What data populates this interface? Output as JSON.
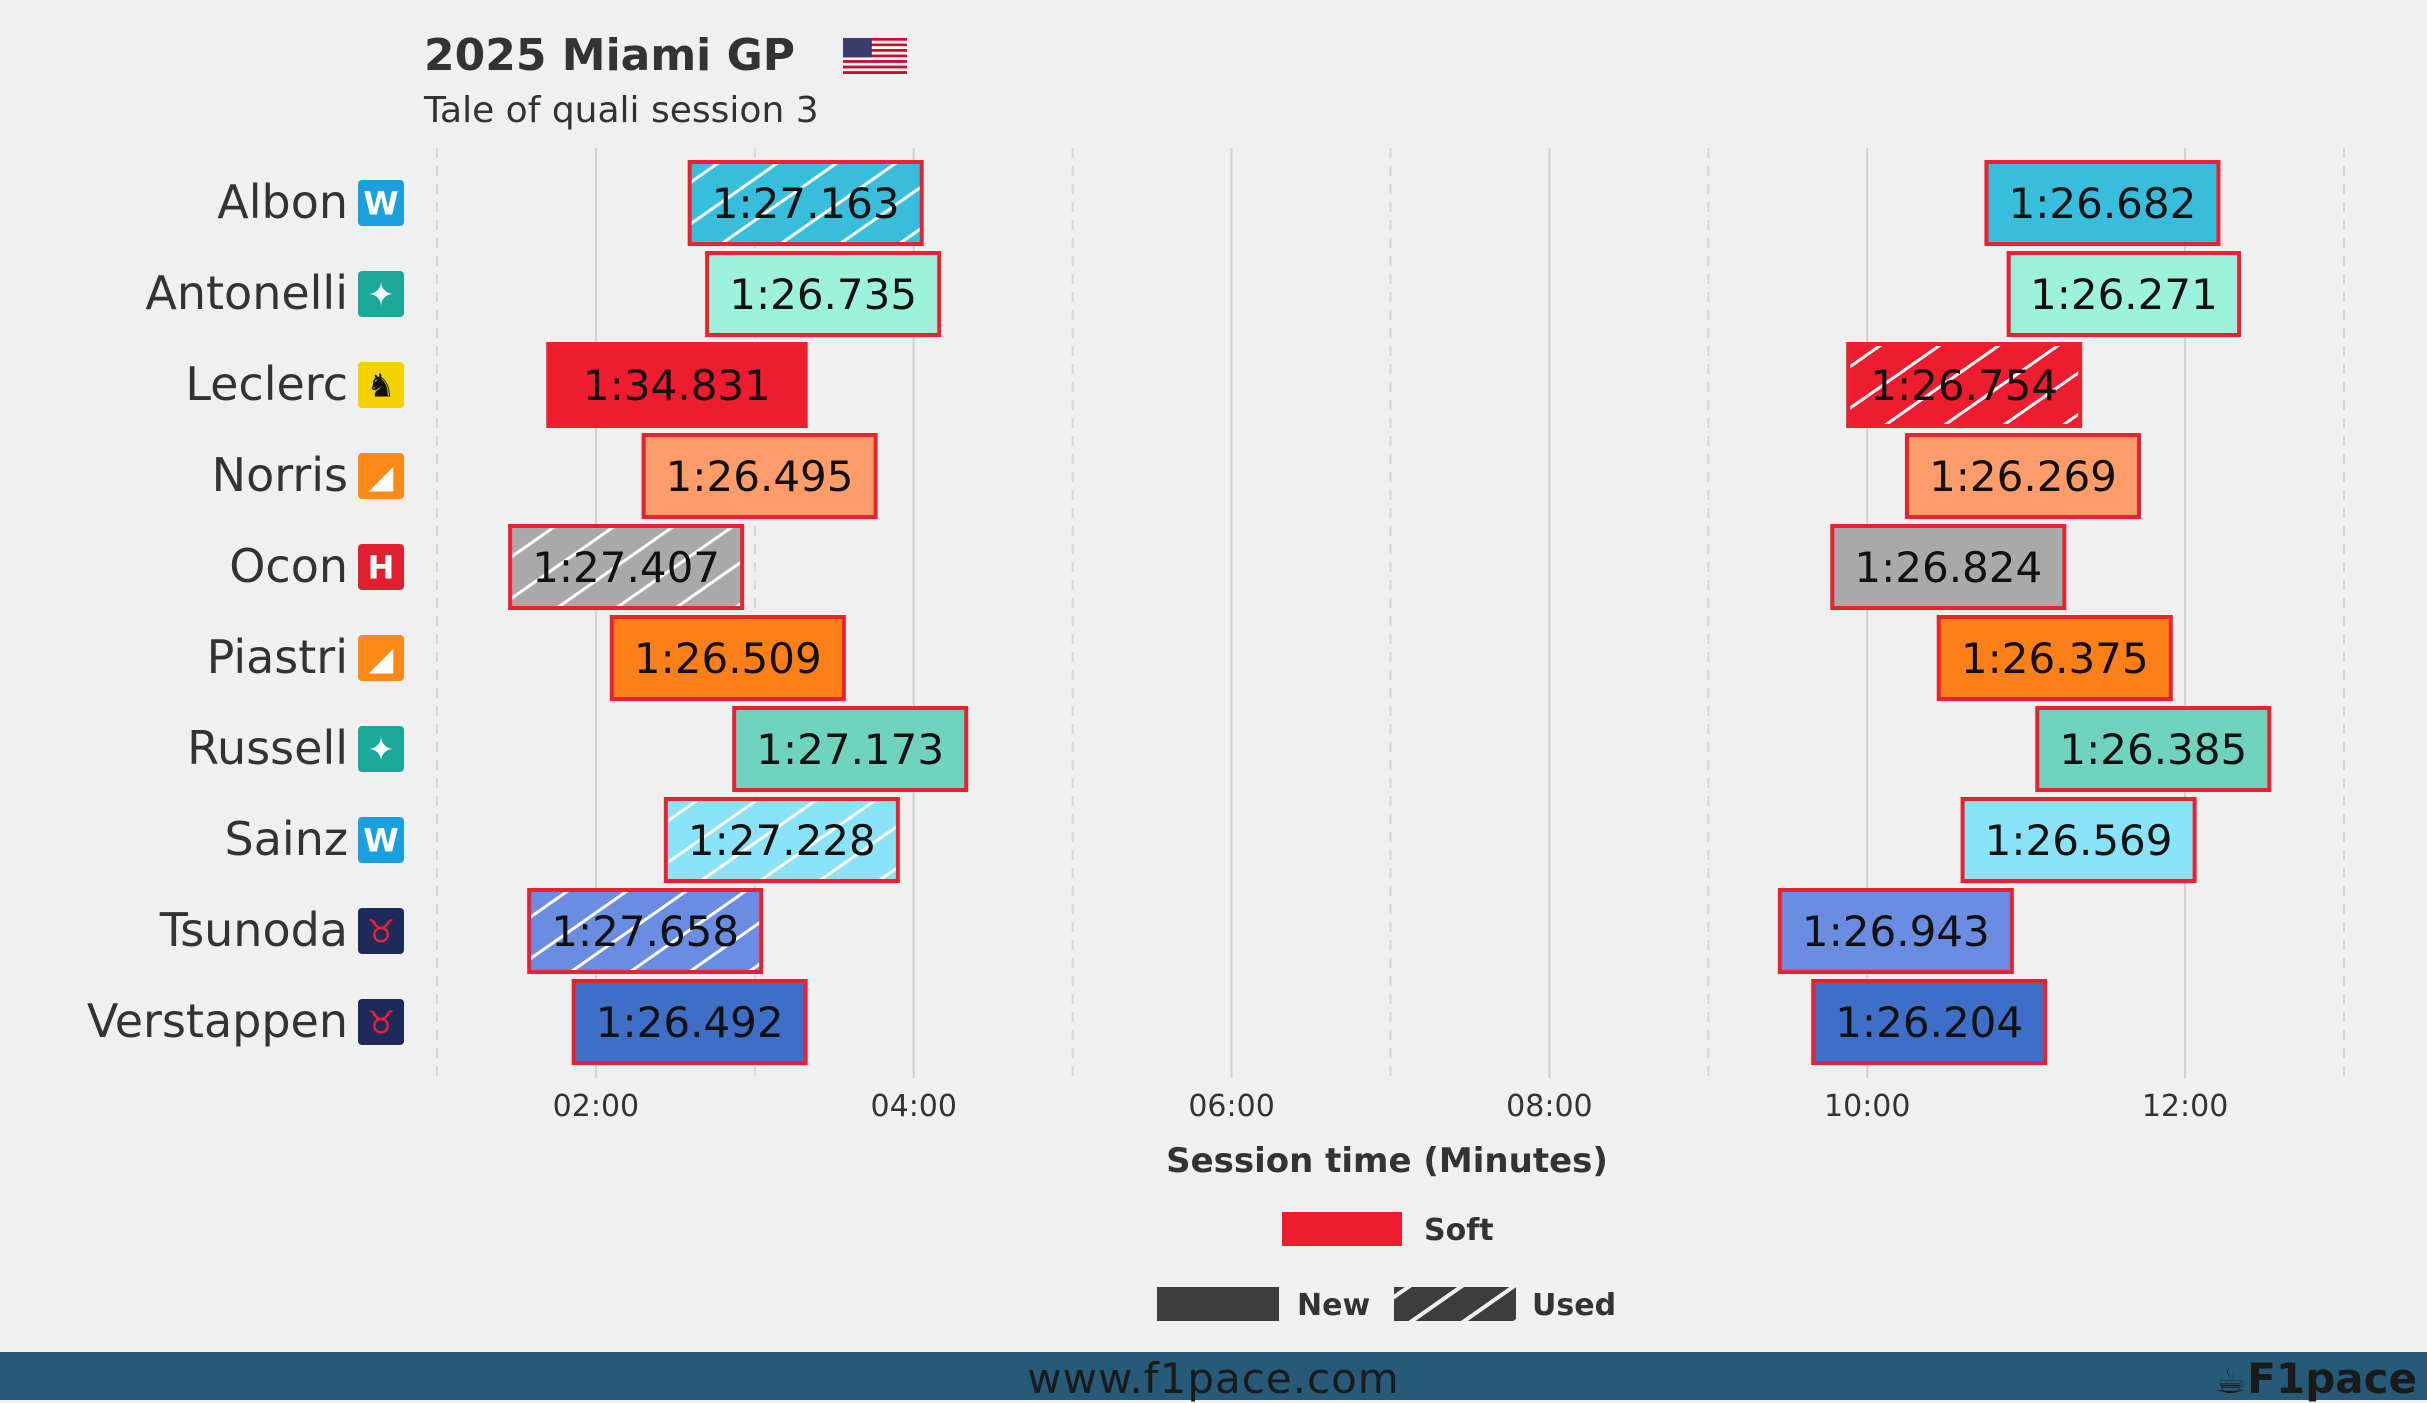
{
  "chart_data": {
    "type": "bar",
    "title": "2025 Miami GP",
    "title_flag_icon": "us-flag-icon",
    "subtitle": "Tale of quali session 3",
    "xlabel": "Session time (Minutes)",
    "xlim": [
      1.0,
      13.0
    ],
    "xticks": [
      {
        "value": 2,
        "label": "02:00"
      },
      {
        "value": 4,
        "label": "04:00"
      },
      {
        "value": 6,
        "label": "06:00"
      },
      {
        "value": 8,
        "label": "08:00"
      },
      {
        "value": 10,
        "label": "10:00"
      },
      {
        "value": 12,
        "label": "12:00"
      }
    ],
    "minor_gridlines": [
      1,
      3,
      5,
      7,
      9,
      13
    ],
    "legend": {
      "compound": [
        {
          "label": "Soft",
          "color": "#ee1c2e"
        }
      ],
      "tyre_age": [
        {
          "label": "New",
          "style": "solid"
        },
        {
          "label": "Used",
          "style": "hatched"
        }
      ]
    },
    "drivers": [
      {
        "name": "Albon",
        "team_icon": "williams-logo-icon",
        "color": "#37bedd",
        "laps": [
          {
            "start": 2.59,
            "end": 4.05,
            "time": "1:27.163",
            "compound": "Soft",
            "used": true
          },
          {
            "start": 10.75,
            "end": 12.21,
            "time": "1:26.682",
            "compound": "Soft",
            "used": false
          }
        ]
      },
      {
        "name": "Antonelli",
        "team_icon": "mercedes-logo-icon",
        "color": "#9df2db",
        "laps": [
          {
            "start": 2.7,
            "end": 4.16,
            "time": "1:26.735",
            "compound": "Soft",
            "used": false
          },
          {
            "start": 10.89,
            "end": 12.34,
            "time": "1:26.271",
            "compound": "Soft",
            "used": false
          }
        ]
      },
      {
        "name": "Leclerc",
        "team_icon": "ferrari-logo-icon",
        "color": "#ee1c2e",
        "laps": [
          {
            "start": 1.7,
            "end": 3.32,
            "time": "1:34.831",
            "compound": "Soft",
            "used": false
          },
          {
            "start": 9.88,
            "end": 11.34,
            "time": "1:26.754",
            "compound": "Soft",
            "used": true
          }
        ]
      },
      {
        "name": "Norris",
        "team_icon": "mclaren-logo-icon",
        "color": "#ff9d6a",
        "laps": [
          {
            "start": 2.3,
            "end": 3.76,
            "time": "1:26.495",
            "compound": "Soft",
            "used": false
          },
          {
            "start": 10.25,
            "end": 11.71,
            "time": "1:26.269",
            "compound": "Soft",
            "used": false
          }
        ]
      },
      {
        "name": "Ocon",
        "team_icon": "haas-logo-icon",
        "color": "#a9a9a9",
        "laps": [
          {
            "start": 1.46,
            "end": 2.92,
            "time": "1:27.407",
            "compound": "Soft",
            "used": true
          },
          {
            "start": 9.78,
            "end": 11.24,
            "time": "1:26.824",
            "compound": "Soft",
            "used": false
          }
        ]
      },
      {
        "name": "Piastri",
        "team_icon": "mclaren-logo-icon",
        "color": "#ff8018",
        "laps": [
          {
            "start": 2.1,
            "end": 3.56,
            "time": "1:26.509",
            "compound": "Soft",
            "used": false
          },
          {
            "start": 10.45,
            "end": 11.91,
            "time": "1:26.375",
            "compound": "Soft",
            "used": false
          }
        ]
      },
      {
        "name": "Russell",
        "team_icon": "mercedes-logo-icon",
        "color": "#6fd3be",
        "laps": [
          {
            "start": 2.87,
            "end": 4.33,
            "time": "1:27.173",
            "compound": "Soft",
            "used": false
          },
          {
            "start": 11.07,
            "end": 12.53,
            "time": "1:26.385",
            "compound": "Soft",
            "used": false
          }
        ]
      },
      {
        "name": "Sainz",
        "team_icon": "williams-logo-icon",
        "color": "#8ae3f8",
        "laps": [
          {
            "start": 2.44,
            "end": 3.9,
            "time": "1:27.228",
            "compound": "Soft",
            "used": true
          },
          {
            "start": 10.6,
            "end": 12.06,
            "time": "1:26.569",
            "compound": "Soft",
            "used": false
          }
        ]
      },
      {
        "name": "Tsunoda",
        "team_icon": "redbull-logo-icon",
        "color": "#6a8de2",
        "laps": [
          {
            "start": 1.58,
            "end": 3.04,
            "time": "1:27.658",
            "compound": "Soft",
            "used": true
          },
          {
            "start": 9.45,
            "end": 10.91,
            "time": "1:26.943",
            "compound": "Soft",
            "used": false
          }
        ]
      },
      {
        "name": "Verstappen",
        "team_icon": "redbull-logo-icon",
        "color": "#3e6ec6",
        "laps": [
          {
            "start": 1.86,
            "end": 3.32,
            "time": "1:26.492",
            "compound": "Soft",
            "used": false
          },
          {
            "start": 9.66,
            "end": 11.12,
            "time": "1:26.204",
            "compound": "Soft",
            "used": false
          }
        ]
      }
    ]
  },
  "footer": {
    "url": "www.f1pace.com",
    "brand": "F1pace",
    "brand_icon": "coffee-cup-logo-icon"
  }
}
